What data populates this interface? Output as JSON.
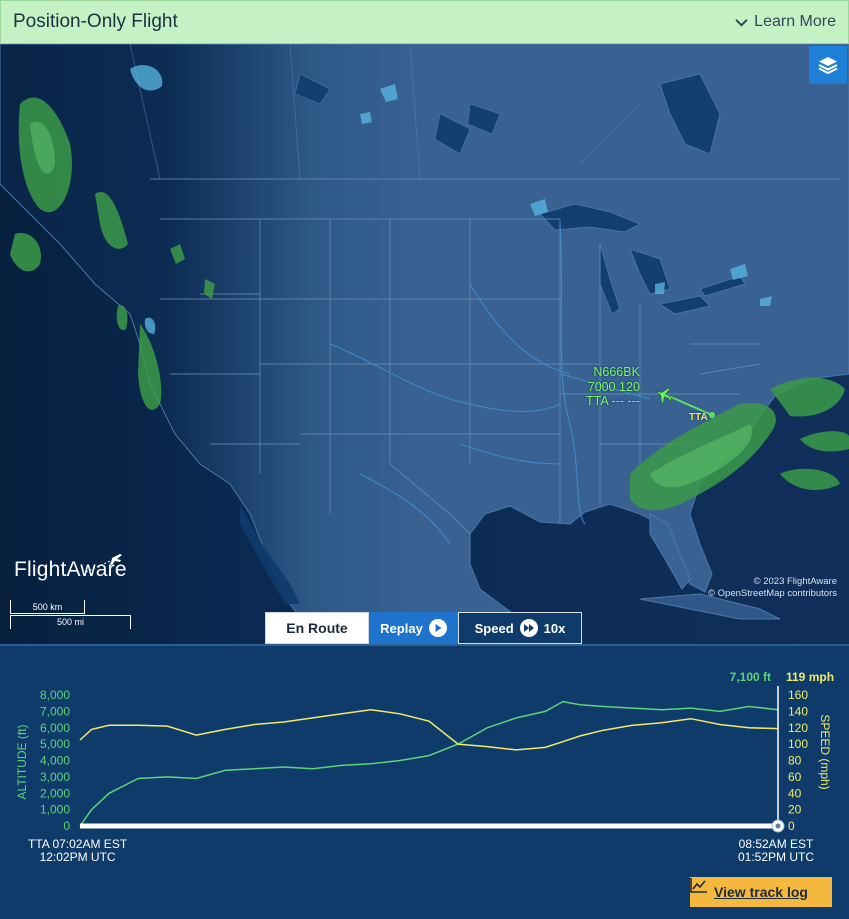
{
  "header": {
    "title": "Position-Only Flight",
    "learn_more": "Learn More"
  },
  "map": {
    "logo_text": "FlightAware",
    "scale_km": "500 km",
    "scale_mi": "500 mi",
    "attribution_1": "© 2023 FlightAware",
    "attribution_2": "© OpenStreetMap contributors",
    "flight_label": {
      "callsign": "N666BK",
      "alt_speed": "7000 120",
      "route": "TTA --- ---"
    },
    "airport_label": "TTA",
    "layers_icon": "layers-icon"
  },
  "controls": {
    "en_route": "En Route",
    "replay": "Replay",
    "speed": "Speed",
    "speed_value": "10x"
  },
  "chart": {
    "current_altitude": "7,100 ft",
    "current_speed": "119 mph",
    "altitude_axis_label": "ALTITUDE (ft)",
    "speed_axis_label": "SPEED (mph)",
    "altitude_ticks": [
      "8,000",
      "7,000",
      "6,000",
      "5,000",
      "4,000",
      "3,000",
      "2,000",
      "1,000",
      "0"
    ],
    "speed_ticks": [
      "160",
      "140",
      "120",
      "100",
      "80",
      "60",
      "40",
      "20",
      "0"
    ],
    "start_label_1": "TTA 07:02AM EST",
    "start_label_2": "12:02PM UTC",
    "end_label_1": "08:52AM EST",
    "end_label_2": "01:52PM UTC",
    "track_log": "View track log"
  },
  "chart_data": {
    "type": "line",
    "xlabel": "",
    "ylabel": "ALTITUDE (ft)",
    "y2label": "SPEED (mph)",
    "ylim": [
      0,
      8000
    ],
    "y2lim": [
      0,
      160
    ],
    "x_minutes": [
      0,
      2,
      5,
      10,
      15,
      20,
      25,
      30,
      35,
      40,
      45,
      50,
      55,
      60,
      65,
      70,
      75,
      80,
      83,
      86,
      90,
      95,
      100,
      105,
      110,
      115,
      120
    ],
    "series": [
      {
        "name": "ALTITUDE (ft)",
        "color": "#5ed37a",
        "values": [
          0,
          1000,
          2000,
          2900,
          3000,
          2900,
          3400,
          3500,
          3600,
          3500,
          3700,
          3800,
          4000,
          4300,
          5000,
          6000,
          6600,
          7000,
          7600,
          7400,
          7300,
          7200,
          7100,
          7200,
          7000,
          7300,
          7100
        ]
      },
      {
        "name": "SPEED (mph)",
        "color": "#f2ea6a",
        "values": [
          105,
          118,
          123,
          123,
          122,
          111,
          118,
          124,
          127,
          132,
          137,
          142,
          137,
          128,
          100,
          97,
          93,
          96,
          103,
          110,
          117,
          123,
          126,
          131,
          124,
          120,
          119
        ]
      }
    ]
  }
}
